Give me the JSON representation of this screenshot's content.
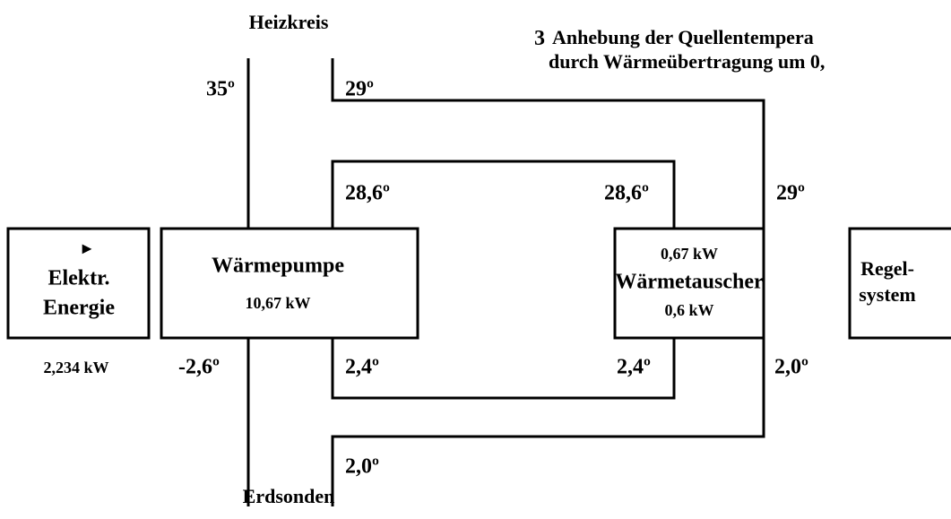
{
  "header": {
    "number": "3",
    "line1": "Anhebung der Quellentempera",
    "line2": "durch Wärmeübertragung um 0,"
  },
  "circuits": {
    "top": "Heizkreis",
    "bottom": "Erdsonden"
  },
  "boxes": {
    "energy": {
      "icon": "►",
      "line1": "Elektr.",
      "line2": "Energie",
      "power": "2,234 kW"
    },
    "pump": {
      "label": "Wärmepumpe",
      "power": "10,67 kW"
    },
    "exchanger": {
      "top": "0,67 kW",
      "label": "Wärmetauscher",
      "bottom": "0,6 kW"
    },
    "control": {
      "line1": "Regel-",
      "line2": "system"
    }
  },
  "temperatures": {
    "pump_out": "35º",
    "return_in": "29º",
    "inner_top_left": "28,6º",
    "inner_top_right": "28,6º",
    "exchanger_top": "29º",
    "pump_source_out": "-2,6º",
    "inner_bottom_left": "2,4º",
    "inner_bottom_right": "2,4º",
    "exchanger_bottom": "2,0º",
    "source_in": "2,0º"
  }
}
